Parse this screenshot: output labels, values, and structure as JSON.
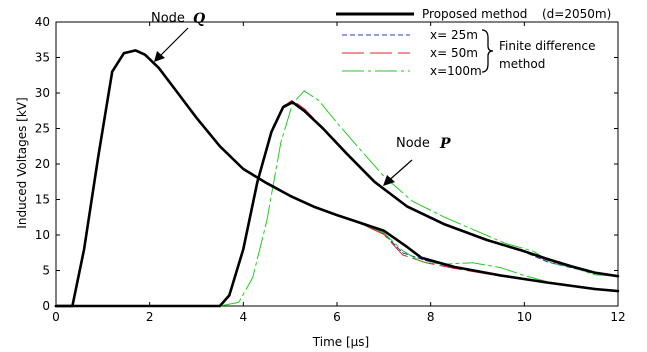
{
  "chart_data": {
    "type": "line",
    "xlabel": "Time [μs]",
    "ylabel": "Induced Voltages [kV]",
    "xlim": [
      0,
      12
    ],
    "ylim": [
      0,
      40
    ],
    "xticks": [
      0,
      2,
      4,
      6,
      8,
      10,
      12
    ],
    "yticks": [
      0,
      5,
      10,
      15,
      20,
      25,
      30,
      35,
      40
    ],
    "grid": false,
    "legend_position": "top-right",
    "legend": {
      "proposed_label": "Proposed method",
      "proposed_param": "(d=2050m)",
      "fd_labels": [
        "x= 25m",
        "x= 50m",
        "x=100m"
      ],
      "fd_group_label_line1": "Finite difference",
      "fd_group_label_line2": "method"
    },
    "annotations": {
      "node_q_prefix": "Node",
      "node_q_symbol": "Q",
      "node_p_prefix": "Node",
      "node_p_symbol": "P"
    },
    "colors": {
      "proposed": "#000000",
      "x25": "#1f3fbf",
      "x50": "#e0202a",
      "x100": "#22cc22"
    },
    "series": [
      {
        "name": "Proposed method (d=2050m)",
        "curve": "Q",
        "style": "solid-thick",
        "x": [
          0,
          0.35,
          0.6,
          0.9,
          1.2,
          1.45,
          1.7,
          1.9,
          2.2,
          2.6,
          3.0,
          3.5,
          4.0,
          4.5,
          5.0,
          5.5,
          6.0,
          6.5,
          7.0,
          7.5,
          7.8,
          8.5,
          9.5,
          10.5,
          11.5,
          12.0
        ],
        "y": [
          0,
          0,
          8,
          21,
          33,
          35.6,
          36,
          35.4,
          33.5,
          30,
          26.5,
          22.5,
          19.3,
          17.3,
          15.5,
          14,
          12.8,
          11.7,
          10.6,
          8.3,
          6.8,
          5.5,
          4.3,
          3.3,
          2.4,
          2.1
        ]
      },
      {
        "name": "Proposed method (d=2050m)",
        "curve": "P",
        "style": "solid-thick",
        "x": [
          0,
          3.5,
          3.7,
          4.0,
          4.3,
          4.6,
          4.85,
          5.05,
          5.3,
          5.7,
          6.2,
          6.8,
          7.5,
          8.3,
          9.2,
          10.0,
          10.5,
          11.0,
          11.5,
          12.0
        ],
        "y": [
          0,
          0,
          1.5,
          8,
          17.5,
          24.5,
          28,
          28.7,
          27.5,
          25,
          21.5,
          17.5,
          14,
          11.5,
          9.3,
          7.7,
          6.6,
          5.6,
          4.7,
          4.2
        ]
      },
      {
        "name": "x= 25m",
        "curve": "Q",
        "style": "dash-short",
        "x": [
          0,
          0.35,
          0.6,
          0.9,
          1.2,
          1.45,
          1.7,
          1.9,
          2.2,
          2.6,
          3.0,
          3.5,
          4.0,
          4.5,
          5.0,
          5.5,
          6.0,
          6.5,
          7.0,
          7.4,
          7.9,
          8.5,
          9.5,
          10.5,
          11.5,
          12.0
        ],
        "y": [
          0,
          0,
          8.2,
          21.2,
          33.1,
          35.7,
          36,
          35.5,
          33.6,
          30.1,
          26.6,
          22.6,
          19.4,
          17.4,
          15.6,
          14,
          12.8,
          11.6,
          10.2,
          7.5,
          6.4,
          5.4,
          4.2,
          3.3,
          2.5,
          2.1
        ]
      },
      {
        "name": "x= 25m",
        "curve": "P",
        "style": "dash-short",
        "x": [
          0,
          3.5,
          3.7,
          4.0,
          4.3,
          4.6,
          4.85,
          5.05,
          5.3,
          5.7,
          6.2,
          6.8,
          7.5,
          8.3,
          9.2,
          10.0,
          10.5,
          11.0,
          11.5,
          12.0
        ],
        "y": [
          0,
          0,
          1.6,
          8.2,
          17.8,
          24.8,
          28.2,
          28.8,
          27.6,
          25,
          21.5,
          17.5,
          14.1,
          11.6,
          9.3,
          7.6,
          6.2,
          5.4,
          4.6,
          4.1
        ]
      },
      {
        "name": "x= 50m",
        "curve": "Q",
        "style": "dash-long",
        "x": [
          0,
          0.35,
          0.6,
          0.9,
          1.2,
          1.45,
          1.7,
          1.9,
          2.2,
          2.6,
          3.0,
          3.5,
          4.0,
          4.5,
          5.0,
          5.5,
          6.0,
          6.5,
          7.0,
          7.4,
          7.9,
          8.5,
          9.5,
          10.5,
          11.5,
          12.0
        ],
        "y": [
          0,
          0,
          8.1,
          21.1,
          33,
          35.6,
          36.1,
          35.5,
          33.6,
          30.1,
          26.6,
          22.6,
          19.4,
          17.4,
          15.6,
          14,
          12.8,
          11.6,
          10.1,
          7.2,
          6.1,
          5.3,
          4.2,
          3.4,
          2.5,
          2.1
        ]
      },
      {
        "name": "x= 50m",
        "curve": "P",
        "style": "dash-long",
        "x": [
          0,
          3.5,
          3.7,
          4.0,
          4.3,
          4.6,
          4.85,
          5.05,
          5.3,
          5.7,
          6.2,
          6.8,
          7.5,
          8.3,
          9.2,
          10.0,
          10.5,
          11.0,
          11.5,
          12.0
        ],
        "y": [
          0,
          0,
          1.4,
          7.8,
          17.2,
          24.3,
          28.1,
          29,
          27.8,
          25.1,
          21.5,
          17.5,
          14.1,
          11.6,
          9.4,
          7.7,
          6.4,
          5.5,
          4.6,
          4.2
        ]
      },
      {
        "name": "x=100m",
        "curve": "Q",
        "style": "dash-dot",
        "x": [
          0,
          0.35,
          0.6,
          0.9,
          1.2,
          1.45,
          1.7,
          1.9,
          2.2,
          2.6,
          3.0,
          3.5,
          4.0,
          4.5,
          5.0,
          5.5,
          6.0,
          6.5,
          7.0,
          7.4,
          7.8,
          8.3,
          8.9,
          9.5,
          10.0,
          10.5,
          11.0,
          11.5,
          12.0
        ],
        "y": [
          0,
          0,
          8,
          21,
          33,
          35.5,
          36,
          35.4,
          33.5,
          30,
          26.5,
          22.6,
          19.4,
          17.4,
          15.6,
          14,
          12.8,
          11.6,
          10.3,
          7.8,
          6.2,
          5.9,
          6.1,
          5.4,
          4.3,
          3.4,
          2.8,
          2.3,
          2.2
        ]
      },
      {
        "name": "x=100m",
        "curve": "P",
        "style": "dash-dot",
        "x": [
          0,
          3.5,
          3.9,
          4.2,
          4.5,
          4.8,
          5.05,
          5.3,
          5.6,
          6.0,
          6.5,
          7.0,
          7.6,
          8.3,
          9.0,
          9.6,
          10.2,
          10.6,
          11.0,
          11.5,
          12.0
        ],
        "y": [
          0,
          0,
          0.5,
          4,
          12,
          23,
          28.5,
          30.3,
          29,
          25.8,
          22,
          18.3,
          14.8,
          12.5,
          10.5,
          8.8,
          7.7,
          6,
          5.5,
          4.4,
          4.2
        ]
      }
    ]
  }
}
